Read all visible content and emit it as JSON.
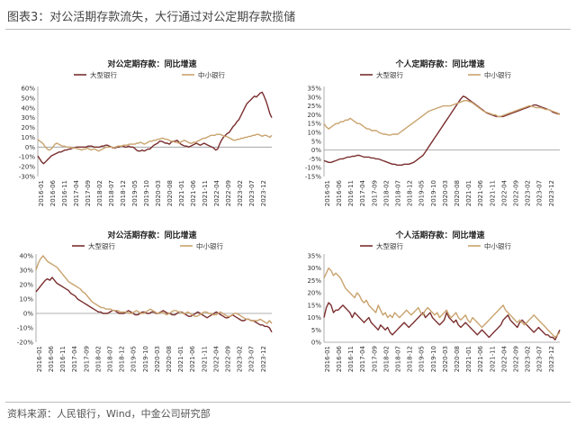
{
  "figure_title": "图表3：对公活期存款流失，大行通过对公定期存款揽储",
  "source": "资料来源：人民银行，Wind，中金公司研究部",
  "colors": {
    "large": "#7a2e2e",
    "small": "#c9a36e",
    "axis": "#999999",
    "grid": "#eeeeee"
  },
  "chart_data": [
    {
      "type": "line",
      "title": "对公定期存款：同比增速",
      "ylim": [
        -30,
        60
      ],
      "ytick_labels": [
        "-30%",
        "-20%",
        "-10%",
        "0%",
        "10%",
        "20%",
        "30%",
        "40%",
        "50%",
        "60%"
      ],
      "yticks": [
        -30,
        -20,
        -10,
        0,
        10,
        20,
        30,
        40,
        50,
        60
      ],
      "x_tick_labels": [
        "2016-01",
        "2016-06",
        "2016-11",
        "2017-04",
        "2017-09",
        "2018-02",
        "2018-07",
        "2018-12",
        "2019-05",
        "2019-10",
        "2020-03",
        "2020-08",
        "2021-01",
        "2021-06",
        "2021-11",
        "2022-04",
        "2022-09",
        "2023-02",
        "2023-07",
        "2023-12"
      ],
      "legend_position": "top",
      "series": [
        {
          "name": "大型银行",
          "color_key": "large",
          "values": [
            -9,
            -12,
            -15,
            -17,
            -15,
            -13,
            -11,
            -9,
            -8,
            -7,
            -6,
            -5,
            -5,
            -4,
            -3,
            -3,
            -2,
            -2,
            -1,
            -1,
            0,
            0,
            0,
            0,
            0,
            0,
            1,
            1,
            1,
            0,
            0,
            0,
            0,
            1,
            1,
            2,
            2,
            1,
            0,
            -1,
            -1,
            0,
            0,
            1,
            1,
            0,
            0,
            1,
            0,
            0,
            -1,
            -3,
            -4,
            -4,
            -3,
            -4,
            -3,
            -2,
            -2,
            0,
            2,
            3,
            4,
            6,
            6,
            5,
            4,
            4,
            3,
            5,
            6,
            6,
            7,
            5,
            3,
            2,
            1,
            1,
            0,
            1,
            2,
            3,
            4,
            3,
            2,
            3,
            4,
            3,
            2,
            1,
            0,
            -1,
            -3,
            -2,
            3,
            7,
            10,
            12,
            14,
            15,
            18,
            21,
            23,
            26,
            28,
            32,
            36,
            40,
            44,
            46,
            48,
            50,
            52,
            51,
            53,
            55,
            56,
            52,
            47,
            41,
            34,
            30
          ]
        },
        {
          "name": "中小银行",
          "color_key": "small",
          "values": [
            8,
            6,
            5,
            3,
            0,
            -2,
            -3,
            -2,
            0,
            3,
            4,
            3,
            2,
            1,
            1,
            0,
            0,
            0,
            -1,
            -1,
            -1,
            -2,
            -2,
            -3,
            -2,
            -2,
            -1,
            -2,
            -3,
            -2,
            -2,
            -3,
            -4,
            -3,
            -2,
            -1,
            0,
            0,
            0,
            0,
            -1,
            0,
            1,
            1,
            1,
            2,
            2,
            2,
            3,
            3,
            3,
            3,
            4,
            4,
            5,
            4,
            3,
            4,
            5,
            6,
            6,
            7,
            7,
            8,
            8,
            9,
            9,
            8,
            8,
            7,
            6,
            6,
            5,
            5,
            4,
            5,
            6,
            7,
            6,
            5,
            4,
            4,
            5,
            5,
            6,
            7,
            8,
            9,
            9,
            10,
            11,
            12,
            12,
            12,
            13,
            13,
            13,
            12,
            11,
            11,
            10,
            9,
            8,
            7,
            7,
            8,
            8,
            9,
            9,
            10,
            10,
            11,
            11,
            12,
            12,
            13,
            13,
            12,
            11,
            12,
            12,
            11,
            10,
            12
          ]
        }
      ]
    },
    {
      "type": "line",
      "title": "个人定期存款：同比增速",
      "ylim": [
        -15,
        35
      ],
      "ytick_labels": [
        "-15%",
        "-10%",
        "-5%",
        "0%",
        "5%",
        "10%",
        "15%",
        "20%",
        "25%",
        "30%",
        "35%"
      ],
      "yticks": [
        -15,
        -10,
        -5,
        0,
        5,
        10,
        15,
        20,
        25,
        30,
        35
      ],
      "x_tick_labels": [
        "2016-01",
        "2016-06",
        "2016-11",
        "2017-04",
        "2017-09",
        "2018-02",
        "2018-07",
        "2018-12",
        "2019-05",
        "2019-10",
        "2020-03",
        "2020-08",
        "2021-01",
        "2021-06",
        "2021-11",
        "2022-04",
        "2022-09",
        "2023-02",
        "2023-07",
        "2023-12"
      ],
      "legend_position": "top",
      "series": [
        {
          "name": "大型银行",
          "color_key": "large",
          "values": [
            -6,
            -6.5,
            -7,
            -7,
            -6.5,
            -6,
            -5.5,
            -5,
            -5,
            -4.5,
            -4,
            -4,
            -3.5,
            -3.5,
            -3,
            -3,
            -3.5,
            -4,
            -4,
            -4,
            -4.5,
            -4.5,
            -5,
            -5,
            -5.5,
            -6,
            -6.5,
            -7,
            -7.5,
            -8,
            -8,
            -8.5,
            -8.5,
            -8.5,
            -8,
            -8,
            -8,
            -7.5,
            -7,
            -6,
            -5,
            -4,
            -3,
            -1,
            1,
            3,
            5,
            7,
            9,
            11,
            13,
            15,
            17,
            19,
            21,
            23,
            25,
            27,
            29,
            30.5,
            30,
            29,
            28,
            27,
            26,
            25,
            24,
            23,
            22,
            21,
            20.5,
            20,
            19.5,
            19,
            19,
            19,
            19,
            19.5,
            20,
            20.5,
            21,
            21.5,
            22,
            22.5,
            23,
            23.5,
            24,
            24.5,
            25,
            25.5,
            25.5,
            25,
            24.5,
            24,
            23.5,
            23,
            22.5,
            21.5,
            21,
            20.5,
            20.5
          ]
        },
        {
          "name": "中小银行",
          "color_key": "small",
          "values": [
            15,
            13,
            12,
            13,
            14,
            15,
            15,
            16,
            16,
            17,
            17,
            18,
            17,
            16,
            15,
            15,
            14,
            13,
            12,
            12,
            11,
            11,
            11,
            10,
            9.5,
            9,
            9,
            8.5,
            8.5,
            9,
            9,
            9,
            10,
            11,
            12,
            13,
            14,
            15,
            16,
            17,
            18,
            19,
            20,
            21,
            22,
            22.5,
            23,
            23.5,
            24,
            24.5,
            25,
            25,
            25,
            25,
            25.5,
            26,
            26.5,
            27,
            27.5,
            28,
            28,
            27.5,
            27,
            26,
            25,
            24,
            23,
            22,
            21.5,
            21,
            20.5,
            20,
            20,
            19,
            19,
            19.5,
            20,
            20.5,
            21,
            21.5,
            22,
            22.5,
            23,
            23.5,
            24,
            24.5,
            25,
            25,
            24.5,
            24,
            24,
            24,
            23.5,
            23,
            23,
            22.5,
            22,
            21.5,
            21,
            20
          ]
        }
      ]
    },
    {
      "type": "line",
      "title": "对公活期存款：同比增速",
      "ylim": [
        -20,
        40
      ],
      "ytick_labels": [
        "-20%",
        "-10%",
        "0%",
        "10%",
        "20%",
        "30%",
        "40%"
      ],
      "yticks": [
        -20,
        -10,
        0,
        10,
        20,
        30,
        40
      ],
      "x_tick_labels": [
        "2016-01",
        "2016-06",
        "2016-11",
        "2017-04",
        "2017-09",
        "2018-02",
        "2018-07",
        "2018-12",
        "2019-05",
        "2019-10",
        "2020-03",
        "2020-08",
        "2021-01",
        "2021-06",
        "2021-11",
        "2022-04",
        "2022-09",
        "2023-02",
        "2023-07",
        "2023-12"
      ],
      "legend_position": "top",
      "series": [
        {
          "name": "大型银行",
          "color_key": "large",
          "values": [
            15,
            17,
            19,
            21,
            23,
            24,
            23,
            25,
            23,
            21,
            20,
            19,
            18,
            17,
            16,
            14,
            13,
            12,
            10,
            9,
            8,
            7,
            6,
            5,
            4,
            3,
            2,
            1,
            1,
            0,
            0,
            0,
            1,
            2,
            2,
            1,
            0,
            0,
            0,
            1,
            2,
            1,
            0,
            -1,
            -1,
            0,
            1,
            1,
            0,
            0,
            1,
            1,
            0,
            0,
            1,
            2,
            1,
            0,
            0,
            -1,
            -1,
            0,
            1,
            1,
            0,
            -1,
            -2,
            -2,
            -1,
            0,
            1,
            0,
            -1,
            -2,
            -3,
            -2,
            -1,
            0,
            1,
            0,
            -1,
            -2,
            -3,
            -3,
            -2,
            -1,
            -2,
            -3,
            -4,
            -5,
            -5,
            -4,
            -4,
            -5,
            -5,
            -6,
            -7,
            -8,
            -8,
            -9,
            -9,
            -10,
            -13
          ]
        },
        {
          "name": "中小银行",
          "color_key": "small",
          "values": [
            30,
            35,
            38,
            40,
            38,
            36,
            35,
            34,
            33,
            32,
            30,
            28,
            26,
            24,
            22,
            21,
            20,
            19,
            18,
            17,
            15,
            14,
            12,
            10,
            8,
            7,
            6,
            5,
            4,
            4,
            3,
            3,
            3,
            2,
            2,
            2,
            1,
            1,
            1,
            1,
            0,
            0,
            1,
            2,
            1,
            0,
            0,
            1,
            2,
            3,
            2,
            1,
            0,
            0,
            1,
            0,
            -1,
            0,
            1,
            2,
            2,
            1,
            1,
            0,
            0,
            1,
            0,
            -1,
            -2,
            -2,
            -1,
            0,
            1,
            1,
            0,
            0,
            -1,
            -1,
            0,
            1,
            0,
            -1,
            -2,
            -2,
            -1,
            0,
            0,
            -1,
            -2,
            -3,
            -4,
            -4,
            -5,
            -5,
            -5,
            -5,
            -4,
            -5,
            -6,
            -7,
            -5,
            -7
          ]
        }
      ]
    },
    {
      "type": "line",
      "title": "个人活期存款：同比增速",
      "ylim": [
        0,
        35
      ],
      "ytick_labels": [
        "0%",
        "5%",
        "10%",
        "15%",
        "20%",
        "25%",
        "30%",
        "35%"
      ],
      "yticks": [
        0,
        5,
        10,
        15,
        20,
        25,
        30,
        35
      ],
      "x_tick_labels": [
        "2016-01",
        "2016-06",
        "2016-11",
        "2017-04",
        "2017-09",
        "2018-02",
        "2018-07",
        "2018-12",
        "2019-05",
        "2019-10",
        "2020-03",
        "2020-08",
        "2021-01",
        "2021-06",
        "2021-11",
        "2022-04",
        "2022-09",
        "2023-02",
        "2023-07",
        "2023-12"
      ],
      "legend_position": "top",
      "series": [
        {
          "name": "大型银行",
          "color_key": "large",
          "values": [
            10,
            14,
            16,
            15,
            12,
            13,
            13,
            14,
            15,
            14,
            13,
            12,
            10,
            12,
            11,
            10,
            9,
            8,
            9,
            10,
            8,
            7,
            6,
            5,
            7,
            6,
            5,
            6,
            4,
            3,
            4,
            5,
            6,
            7,
            8,
            7,
            6,
            7,
            8,
            9,
            10,
            11,
            12,
            10,
            11,
            12,
            10,
            9,
            8,
            7,
            8,
            9,
            12,
            10,
            9,
            8,
            9,
            7,
            6,
            7,
            8,
            7,
            6,
            5,
            4,
            3,
            4,
            5,
            4,
            3,
            2,
            3,
            4,
            5,
            6,
            7,
            9,
            10,
            11,
            9,
            8,
            7,
            6,
            8,
            9,
            8,
            7,
            6,
            5,
            4,
            5,
            6,
            5,
            4,
            3,
            3,
            2,
            2,
            1,
            3,
            5
          ]
        },
        {
          "name": "中小银行",
          "color_key": "small",
          "values": [
            26,
            28,
            30,
            29,
            27,
            28,
            27,
            26,
            24,
            22,
            21,
            20,
            19,
            18,
            20,
            19,
            17,
            16,
            17,
            15,
            14,
            13,
            12,
            15,
            13,
            11,
            12,
            10,
            11,
            10,
            12,
            11,
            10,
            11,
            12,
            13,
            12,
            11,
            12,
            13,
            14,
            12,
            11,
            13,
            14,
            13,
            12,
            11,
            12,
            10,
            11,
            12,
            13,
            11,
            10,
            11,
            12,
            10,
            9,
            10,
            11,
            9,
            8,
            10,
            9,
            8,
            7,
            6,
            7,
            8,
            9,
            10,
            11,
            12,
            13,
            14,
            15,
            13,
            12,
            11,
            10,
            9,
            8,
            9,
            8,
            7,
            8,
            9,
            10,
            11,
            10,
            9,
            8,
            7,
            6,
            5,
            4,
            3,
            2,
            3,
            4
          ]
        }
      ]
    }
  ]
}
